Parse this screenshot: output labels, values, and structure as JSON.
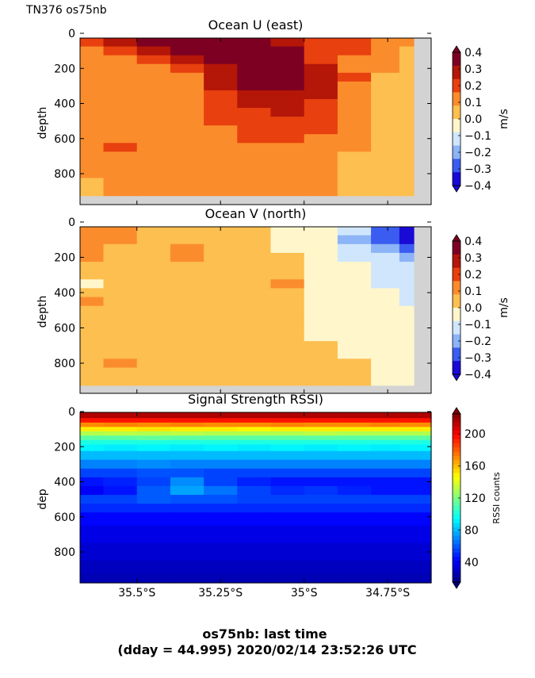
{
  "header": {
    "label": "TN376 os75nb"
  },
  "footer": {
    "line1": "os75nb: last time",
    "line2": "(dday = 44.995) 2020/02/14 23:52:26 UTC"
  },
  "colors": {
    "nodata": "#d3d3d3",
    "diverging": [
      "#1a0ad6",
      "#3a5cf0",
      "#8cb4f7",
      "#cfe6fc",
      "#fff6cc",
      "#fdbf4f",
      "#fb8c2c",
      "#e8400e",
      "#b41608",
      "#7d0022"
    ]
  },
  "chart_data": [
    {
      "type": "heatmap",
      "title": "Ocean U (east)",
      "ylabel": "depth",
      "yticks": [
        "0",
        "200",
        "400",
        "600",
        "800"
      ],
      "ylim": [
        950,
        0
      ],
      "x_range_deg_south": [
        35.67,
        34.62
      ],
      "colorbar": {
        "label": "m/s",
        "ticks": [
          "0.4",
          "0.3",
          "0.2",
          "0.1",
          "0.0",
          "−0.1",
          "−0.2",
          "−0.3",
          "−0.4"
        ],
        "range": [
          -0.4,
          0.4
        ]
      },
      "x": [
        35.65,
        35.55,
        35.45,
        35.35,
        35.25,
        35.15,
        35.05,
        34.95,
        34.85,
        34.75,
        34.68
      ],
      "depths": [
        50,
        100,
        150,
        200,
        250,
        300,
        350,
        400,
        450,
        500,
        550,
        600,
        650,
        700,
        750,
        800,
        850,
        900
      ],
      "values": [
        [
          0.2,
          0.28,
          0.4,
          0.45,
          0.45,
          0.4,
          0.3,
          0.22,
          0.18,
          0.15,
          0.1
        ],
        [
          0.15,
          0.22,
          0.3,
          0.38,
          0.4,
          0.42,
          0.35,
          0.22,
          0.16,
          0.12,
          0.05
        ],
        [
          0.12,
          0.15,
          0.2,
          0.28,
          0.32,
          0.42,
          0.35,
          0.2,
          0.14,
          0.1,
          0.02
        ],
        [
          0.12,
          0.12,
          0.14,
          0.18,
          0.28,
          0.4,
          0.36,
          0.25,
          0.15,
          0.08,
          0.01
        ],
        [
          0.12,
          0.12,
          0.12,
          0.15,
          0.28,
          0.35,
          0.36,
          0.28,
          0.16,
          0.06,
          0.01
        ],
        [
          0.12,
          0.12,
          0.12,
          0.14,
          0.26,
          0.32,
          0.34,
          0.26,
          0.15,
          0.05,
          0.0
        ],
        [
          0.12,
          0.12,
          0.12,
          0.13,
          0.22,
          0.3,
          0.3,
          0.24,
          0.14,
          0.04,
          0.0
        ],
        [
          0.11,
          0.11,
          0.12,
          0.13,
          0.2,
          0.26,
          0.28,
          0.22,
          0.12,
          0.04,
          0.0
        ],
        [
          0.11,
          0.11,
          0.12,
          0.13,
          0.18,
          0.22,
          0.24,
          0.2,
          0.12,
          0.04,
          0.0
        ],
        [
          0.11,
          0.11,
          0.12,
          0.12,
          0.16,
          0.2,
          0.2,
          0.18,
          0.12,
          0.04,
          0.0
        ],
        [
          0.11,
          0.12,
          0.12,
          0.12,
          0.15,
          0.18,
          0.18,
          0.16,
          0.1,
          0.04,
          0.0
        ],
        [
          0.11,
          0.15,
          0.12,
          0.12,
          0.14,
          0.16,
          0.16,
          0.14,
          0.1,
          0.03,
          0.0
        ],
        [
          0.11,
          0.16,
          0.15,
          0.12,
          0.13,
          0.15,
          0.15,
          0.12,
          0.08,
          0.03,
          0.0
        ],
        [
          0.11,
          0.12,
          0.12,
          0.12,
          0.13,
          0.14,
          0.14,
          0.12,
          0.06,
          0.02,
          0.0
        ],
        [
          0.11,
          0.11,
          0.12,
          0.12,
          0.12,
          0.13,
          0.13,
          0.12,
          0.05,
          0.01,
          0.0
        ],
        [
          0.11,
          0.11,
          0.11,
          0.12,
          0.12,
          0.12,
          0.13,
          0.12,
          0.05,
          0.01,
          0.0
        ],
        [
          0.05,
          0.11,
          0.11,
          0.12,
          0.12,
          0.12,
          0.13,
          0.12,
          0.06,
          0.01,
          0.0
        ],
        [
          0.05,
          0.11,
          0.11,
          0.11,
          0.12,
          0.12,
          0.13,
          0.12,
          0.06,
          0.01,
          0.0
        ]
      ]
    },
    {
      "type": "heatmap",
      "title": "Ocean V (north)",
      "ylabel": "depth",
      "yticks": [
        "0",
        "200",
        "400",
        "600",
        "800"
      ],
      "ylim": [
        950,
        0
      ],
      "x_range_deg_south": [
        35.67,
        34.62
      ],
      "colorbar": {
        "label": "m/s",
        "ticks": [
          "0.4",
          "0.3",
          "0.2",
          "0.1",
          "0.0",
          "−0.1",
          "−0.2",
          "−0.3",
          "−0.4"
        ],
        "range": [
          -0.4,
          0.4
        ]
      },
      "x": [
        35.65,
        35.55,
        35.45,
        35.35,
        35.25,
        35.15,
        35.05,
        34.95,
        34.85,
        34.75,
        34.68
      ],
      "depths": [
        50,
        100,
        150,
        200,
        250,
        300,
        350,
        400,
        450,
        500,
        550,
        600,
        650,
        700,
        750,
        800,
        850,
        900
      ],
      "values": [
        [
          0.15,
          0.08,
          0.04,
          0.02,
          0.03,
          0.02,
          -0.02,
          -0.05,
          -0.15,
          -0.32,
          -0.4
        ],
        [
          0.12,
          0.1,
          0.05,
          0.04,
          0.03,
          0.02,
          -0.02,
          -0.08,
          -0.18,
          -0.3,
          -0.38
        ],
        [
          0.12,
          0.05,
          0.05,
          0.12,
          0.04,
          0.03,
          -0.02,
          -0.08,
          -0.12,
          -0.22,
          -0.3
        ],
        [
          0.12,
          0.05,
          0.05,
          0.12,
          0.04,
          0.03,
          0.01,
          -0.06,
          -0.1,
          -0.15,
          -0.2
        ],
        [
          0.04,
          0.04,
          0.05,
          0.04,
          0.04,
          0.04,
          0.02,
          -0.06,
          -0.08,
          -0.12,
          -0.15
        ],
        [
          0.04,
          0.04,
          0.04,
          0.04,
          0.04,
          0.04,
          0.02,
          -0.06,
          -0.08,
          -0.1,
          -0.12
        ],
        [
          -0.05,
          0.04,
          0.04,
          0.04,
          0.03,
          0.04,
          0.12,
          -0.05,
          -0.08,
          -0.1,
          -0.12
        ],
        [
          0.04,
          0.04,
          0.04,
          0.04,
          0.03,
          0.04,
          0.02,
          -0.05,
          -0.08,
          -0.08,
          -0.1
        ],
        [
          0.12,
          0.04,
          0.04,
          0.03,
          0.03,
          0.04,
          0.02,
          -0.05,
          -0.06,
          -0.08,
          -0.1
        ],
        [
          0.04,
          0.04,
          0.04,
          0.04,
          0.04,
          0.04,
          0.02,
          -0.05,
          -0.05,
          -0.06,
          -0.08
        ],
        [
          0.04,
          0.04,
          0.04,
          0.03,
          0.04,
          0.04,
          0.02,
          -0.04,
          -0.05,
          -0.06,
          -0.06
        ],
        [
          0.04,
          0.04,
          0.04,
          0.04,
          0.04,
          0.04,
          0.03,
          -0.04,
          -0.05,
          -0.06,
          -0.06
        ],
        [
          0.04,
          0.04,
          0.04,
          0.04,
          0.04,
          0.04,
          0.04,
          -0.04,
          -0.04,
          -0.05,
          -0.06
        ],
        [
          0.04,
          0.04,
          0.04,
          0.04,
          0.04,
          0.04,
          0.04,
          0.04,
          -0.04,
          -0.05,
          -0.06
        ],
        [
          0.04,
          0.04,
          0.04,
          0.04,
          0.04,
          0.04,
          0.04,
          0.04,
          -0.04,
          -0.04,
          -0.05
        ],
        [
          0.04,
          0.12,
          0.04,
          0.04,
          0.04,
          0.04,
          0.04,
          0.04,
          0.02,
          -0.04,
          -0.05
        ],
        [
          0.04,
          0.04,
          0.04,
          0.04,
          0.04,
          0.04,
          0.04,
          0.04,
          0.03,
          -0.04,
          -0.05
        ],
        [
          0.04,
          0.04,
          0.04,
          0.04,
          0.04,
          0.04,
          0.04,
          0.04,
          0.03,
          -0.04,
          -0.05
        ]
      ]
    },
    {
      "type": "heatmap",
      "title": "Signal Strength RSSI)",
      "ylabel": "dep",
      "yticks": [
        "0",
        "200",
        "400",
        "600",
        "800"
      ],
      "ylim": [
        970,
        0
      ],
      "xticks": [
        "35.5°S",
        "35.25°S",
        "35°S",
        "34.75°S"
      ],
      "xtick_values": [
        35.5,
        35.25,
        35.0,
        34.75
      ],
      "x_range_deg_south": [
        35.67,
        34.62
      ],
      "colorbar": {
        "label": "RSSI counts",
        "ticks": [
          "200",
          "160",
          "120",
          "80",
          "40"
        ],
        "range": [
          15,
          225
        ]
      },
      "x": [
        35.65,
        35.55,
        35.45,
        35.35,
        35.25,
        35.15,
        35.05,
        34.95,
        34.85,
        34.75,
        34.68
      ],
      "depths": [
        25,
        50,
        75,
        100,
        125,
        150,
        175,
        200,
        250,
        300,
        350,
        400,
        450,
        500,
        550,
        600,
        700,
        800,
        900,
        950
      ],
      "values": [
        [
          215,
          215,
          215,
          215,
          215,
          215,
          215,
          215,
          215,
          215,
          215
        ],
        [
          195,
          195,
          195,
          195,
          195,
          195,
          195,
          195,
          195,
          195,
          195
        ],
        [
          170,
          172,
          170,
          172,
          170,
          170,
          172,
          170,
          170,
          172,
          170
        ],
        [
          150,
          150,
          152,
          150,
          150,
          148,
          150,
          150,
          150,
          150,
          150
        ],
        [
          130,
          132,
          130,
          132,
          130,
          130,
          130,
          132,
          130,
          130,
          130
        ],
        [
          112,
          112,
          114,
          112,
          112,
          112,
          112,
          112,
          112,
          112,
          112
        ],
        [
          100,
          100,
          100,
          100,
          100,
          100,
          100,
          100,
          100,
          100,
          100
        ],
        [
          92,
          90,
          92,
          90,
          92,
          90,
          92,
          90,
          92,
          90,
          92
        ],
        [
          80,
          80,
          80,
          80,
          80,
          80,
          80,
          80,
          80,
          80,
          80
        ],
        [
          68,
          68,
          70,
          68,
          68,
          68,
          68,
          68,
          68,
          68,
          68
        ],
        [
          55,
          55,
          58,
          58,
          55,
          55,
          55,
          55,
          55,
          55,
          55
        ],
        [
          45,
          48,
          55,
          70,
          55,
          48,
          45,
          45,
          45,
          45,
          45
        ],
        [
          40,
          45,
          60,
          75,
          65,
          55,
          50,
          52,
          48,
          45,
          45
        ],
        [
          55,
          55,
          60,
          58,
          58,
          55,
          55,
          55,
          55,
          55,
          55
        ],
        [
          50,
          50,
          50,
          50,
          50,
          50,
          50,
          50,
          50,
          50,
          50
        ],
        [
          42,
          42,
          42,
          42,
          42,
          42,
          42,
          42,
          42,
          42,
          42
        ],
        [
          36,
          36,
          36,
          36,
          36,
          36,
          36,
          36,
          36,
          36,
          36
        ],
        [
          32,
          32,
          32,
          32,
          32,
          32,
          32,
          32,
          32,
          32,
          32
        ],
        [
          28,
          28,
          28,
          28,
          28,
          28,
          28,
          28,
          28,
          28,
          28
        ],
        [
          26,
          26,
          26,
          26,
          26,
          26,
          26,
          26,
          26,
          26,
          26
        ]
      ]
    }
  ]
}
